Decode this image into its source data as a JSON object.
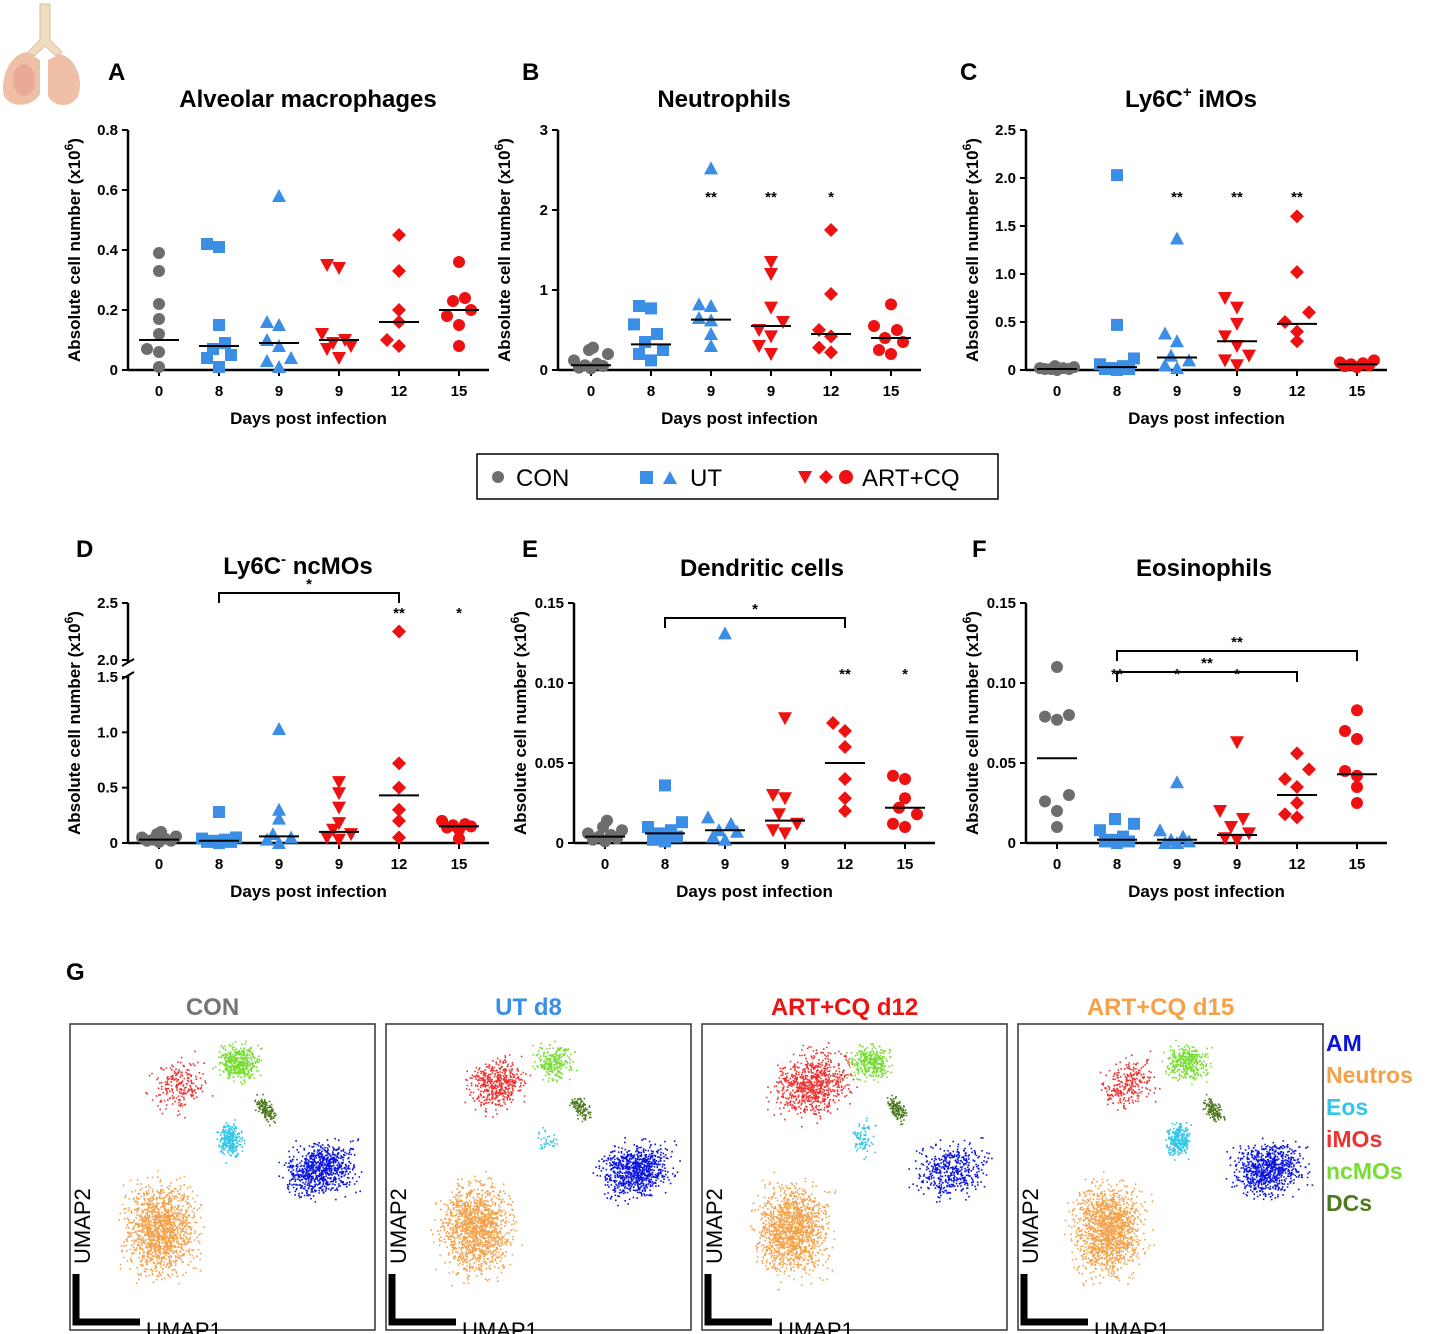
{
  "colors": {
    "CON": "#6d6d6d",
    "UT": "#3a8ee6",
    "ART": "#ee1111",
    "AM": "#0a14e0",
    "Neutros": "#f4a24a",
    "Eos": "#33c6e6",
    "iMOs": "#ee3333",
    "ncMOs": "#77dd33",
    "DCs": "#4e7a1f"
  },
  "legend": {
    "con": "CON",
    "ut": "UT",
    "art": "ART+CQ"
  },
  "umap": {
    "panel_label": "G",
    "titles": [
      "CON",
      "UT d8",
      "ART+CQ d12",
      "ART+CQ d15"
    ],
    "title_colors": [
      "#757575",
      "#3a8ee6",
      "#ee1111",
      "#f4a24a"
    ],
    "xlabel": "UMAP1",
    "ylabel": "UMAP2",
    "cell_types": [
      "AM",
      "Neutros",
      "Eos",
      "iMOs",
      "ncMOs",
      "DCs"
    ],
    "cluster_density": {
      "iMOs": [
        0.45,
        0.95,
        1.6,
        0.55
      ],
      "ncMOs": [
        1,
        0.55,
        0.75,
        0.8
      ],
      "Eos": [
        1,
        0.12,
        0.3,
        1
      ],
      "DCs": [
        1,
        0.8,
        1,
        1
      ],
      "AM": [
        1,
        1,
        0.55,
        1
      ],
      "Neutros": [
        1,
        1,
        1,
        1
      ]
    }
  },
  "chart_data": [
    {
      "panel": "A",
      "type": "scatter",
      "title": "Alveolar macrophages",
      "title_sup": "",
      "title_rest": "",
      "ylabel": "Absolute cell number (x10",
      "ylabel_sup": "6",
      "xlabel": "Days post infection",
      "x_categories": [
        "0",
        "8",
        "9",
        "9",
        "12",
        "15"
      ],
      "groups": [
        "CON",
        "UT",
        "UT",
        "ART",
        "ART",
        "ART"
      ],
      "markers": [
        "circle",
        "square",
        "triangle",
        "invtriangle",
        "diamond",
        "circle"
      ],
      "ylim": [
        0,
        0.8
      ],
      "yticks": [
        0,
        0.2,
        0.4,
        0.6,
        0.8
      ],
      "ytick_labels": [
        "0",
        "0.2",
        "0.4",
        "0.6",
        "0.8"
      ],
      "values": [
        [
          0.39,
          0.33,
          0.22,
          0.17,
          0.12,
          0.07,
          0.06,
          0.01
        ],
        [
          0.42,
          0.41,
          0.15,
          0.09,
          0.07,
          0.05,
          0.04,
          0.01
        ],
        [
          0.58,
          0.16,
          0.15,
          0.1,
          0.08,
          0.04,
          0.03,
          0.01
        ],
        [
          0.35,
          0.34,
          0.12,
          0.1,
          0.09,
          0.08,
          0.07,
          0.04
        ],
        [
          0.45,
          0.33,
          0.2,
          0.16,
          0.1,
          0.08
        ],
        [
          0.36,
          0.24,
          0.23,
          0.2,
          0.18,
          0.15,
          0.08
        ]
      ],
      "medians": [
        0.1,
        0.08,
        0.09,
        0.1,
        0.16,
        0.2
      ],
      "stars": [
        "",
        "",
        "",
        "",
        "",
        ""
      ],
      "brackets": []
    },
    {
      "panel": "B",
      "type": "scatter",
      "title": "Neutrophils",
      "title_sup": "",
      "title_rest": "",
      "ylabel": "Absolute cell number (x10",
      "ylabel_sup": "6",
      "xlabel": "Days post infection",
      "x_categories": [
        "0",
        "8",
        "9",
        "9",
        "12",
        "15"
      ],
      "groups": [
        "CON",
        "UT",
        "UT",
        "ART",
        "ART",
        "ART"
      ],
      "markers": [
        "circle",
        "square",
        "triangle",
        "invtriangle",
        "diamond",
        "circle"
      ],
      "ylim": [
        0,
        3
      ],
      "yticks": [
        0,
        1,
        2,
        3
      ],
      "ytick_labels": [
        "0",
        "1",
        "2",
        "3"
      ],
      "values": [
        [
          0.28,
          0.25,
          0.2,
          0.12,
          0.08,
          0.06,
          0.05,
          0.03,
          0.02
        ],
        [
          0.8,
          0.77,
          0.57,
          0.45,
          0.35,
          0.25,
          0.2,
          0.12
        ],
        [
          2.52,
          0.82,
          0.8,
          0.65,
          0.62,
          0.45,
          0.3
        ],
        [
          1.35,
          1.2,
          0.78,
          0.6,
          0.5,
          0.42,
          0.3,
          0.2
        ],
        [
          1.75,
          0.95,
          0.5,
          0.42,
          0.28,
          0.22
        ],
        [
          0.82,
          0.55,
          0.5,
          0.4,
          0.35,
          0.25,
          0.2
        ]
      ],
      "medians": [
        0.06,
        0.32,
        0.63,
        0.55,
        0.45,
        0.4
      ],
      "stars": [
        "",
        "",
        "**",
        "**",
        "*",
        ""
      ],
      "brackets": []
    },
    {
      "panel": "C",
      "type": "scatter",
      "title": "Ly6C",
      "title_sup": "+",
      "title_rest": " iMOs",
      "ylabel": "Absolute cell number (x10",
      "ylabel_sup": "6",
      "xlabel": "Days post infection",
      "x_categories": [
        "0",
        "8",
        "9",
        "9",
        "12",
        "15"
      ],
      "groups": [
        "CON",
        "UT",
        "UT",
        "ART",
        "ART",
        "ART"
      ],
      "markers": [
        "circle",
        "square",
        "triangle",
        "invtriangle",
        "diamond",
        "circle"
      ],
      "ylim": [
        0,
        2.5
      ],
      "yticks": [
        0,
        0.5,
        1.0,
        1.5,
        2.0,
        2.5
      ],
      "ytick_labels": [
        "0",
        "0.5",
        "1.0",
        "1.5",
        "2.0",
        "2.5"
      ],
      "values": [
        [
          0.04,
          0.03,
          0.02,
          0.02,
          0.01,
          0.01,
          0.01,
          0.0
        ],
        [
          2.03,
          0.47,
          0.12,
          0.06,
          0.04,
          0.02,
          0.01,
          0.01,
          0.0
        ],
        [
          1.37,
          0.38,
          0.3,
          0.15,
          0.1,
          0.05,
          0.02
        ],
        [
          0.75,
          0.65,
          0.48,
          0.35,
          0.25,
          0.15,
          0.1,
          0.05
        ],
        [
          1.6,
          1.02,
          0.6,
          0.5,
          0.4,
          0.3
        ],
        [
          0.1,
          0.08,
          0.07,
          0.06,
          0.05,
          0.04,
          0.03
        ]
      ],
      "medians": [
        0.01,
        0.03,
        0.13,
        0.3,
        0.48,
        0.06
      ],
      "stars": [
        "",
        "",
        "**",
        "**",
        "**",
        ""
      ],
      "brackets": []
    },
    {
      "panel": "D",
      "type": "scatter",
      "title": "Ly6C",
      "title_sup": "-",
      "title_rest": " ncMOs",
      "ylabel": "Absolute cell number (x10",
      "ylabel_sup": "6",
      "xlabel": "Days post infection",
      "x_categories": [
        "0",
        "8",
        "9",
        "9",
        "12",
        "15"
      ],
      "groups": [
        "CON",
        "UT",
        "UT",
        "ART",
        "ART",
        "ART"
      ],
      "markers": [
        "circle",
        "square",
        "triangle",
        "invtriangle",
        "diamond",
        "circle"
      ],
      "ylim": [
        0,
        2.5
      ],
      "yticks": [
        0,
        0.5,
        1.0,
        1.5,
        2.0,
        2.5
      ],
      "ytick_labels": [
        "0",
        "0.5",
        "1.0",
        "1.5",
        "2.0",
        "2.5"
      ],
      "broken_axis": {
        "lower": [
          0,
          1.5
        ],
        "upper": [
          2.0,
          2.5
        ]
      },
      "values": [
        [
          0.1,
          0.08,
          0.06,
          0.05,
          0.04,
          0.03,
          0.02,
          0.02,
          0.01
        ],
        [
          0.28,
          0.05,
          0.04,
          0.03,
          0.02,
          0.01,
          0.01,
          0.0
        ],
        [
          1.03,
          0.3,
          0.22,
          0.08,
          0.05,
          0.03,
          0.0
        ],
        [
          0.55,
          0.45,
          0.32,
          0.18,
          0.12,
          0.08,
          0.05,
          0.03
        ],
        [
          2.25,
          0.72,
          0.5,
          0.3,
          0.2,
          0.05
        ],
        [
          0.2,
          0.17,
          0.16,
          0.15,
          0.14,
          0.12,
          0.04
        ]
      ],
      "medians": [
        0.03,
        0.02,
        0.06,
        0.1,
        0.43,
        0.15
      ],
      "stars": [
        "",
        "",
        "",
        "",
        "**",
        "*"
      ],
      "brackets": [
        {
          "from": 1,
          "to": 4,
          "label": "*"
        }
      ]
    },
    {
      "panel": "E",
      "type": "scatter",
      "title": "Dendritic cells",
      "title_sup": "",
      "title_rest": "",
      "ylabel": "Absolute cell number (x10",
      "ylabel_sup": "6",
      "xlabel": "Days post infection",
      "x_categories": [
        "0",
        "8",
        "9",
        "9",
        "12",
        "15"
      ],
      "groups": [
        "CON",
        "UT",
        "UT",
        "ART",
        "ART",
        "ART"
      ],
      "markers": [
        "circle",
        "square",
        "triangle",
        "invtriangle",
        "diamond",
        "circle"
      ],
      "ylim": [
        0,
        0.15
      ],
      "yticks": [
        0,
        0.05,
        0.1,
        0.15
      ],
      "ytick_labels": [
        "0",
        "0.05",
        "0.10",
        "0.15"
      ],
      "values": [
        [
          0.014,
          0.01,
          0.008,
          0.006,
          0.005,
          0.004,
          0.003,
          0.002,
          0.001
        ],
        [
          0.036,
          0.013,
          0.01,
          0.008,
          0.006,
          0.004,
          0.002,
          0.001
        ],
        [
          0.131,
          0.016,
          0.012,
          0.008,
          0.007,
          0.004,
          0.002
        ],
        [
          0.078,
          0.03,
          0.028,
          0.018,
          0.012,
          0.008,
          0.006
        ],
        [
          0.075,
          0.07,
          0.06,
          0.04,
          0.028,
          0.02
        ],
        [
          0.042,
          0.04,
          0.028,
          0.022,
          0.018,
          0.012,
          0.01
        ]
      ],
      "medians": [
        0.004,
        0.006,
        0.008,
        0.014,
        0.05,
        0.022
      ],
      "stars": [
        "",
        "",
        "",
        "",
        "**",
        "*"
      ],
      "brackets": [
        {
          "from": 1,
          "to": 4,
          "label": "*"
        }
      ]
    },
    {
      "panel": "F",
      "type": "scatter",
      "title": "Eosinophils",
      "title_sup": "",
      "title_rest": "",
      "ylabel": "Absolute cell number (x10",
      "ylabel_sup": "6",
      "xlabel": "Days post infection",
      "x_categories": [
        "0",
        "8",
        "9",
        "9",
        "12",
        "15"
      ],
      "groups": [
        "CON",
        "UT",
        "UT",
        "ART",
        "ART",
        "ART"
      ],
      "markers": [
        "circle",
        "square",
        "triangle",
        "invtriangle",
        "diamond",
        "circle"
      ],
      "ylim": [
        0,
        0.15
      ],
      "yticks": [
        0,
        0.05,
        0.1,
        0.15
      ],
      "ytick_labels": [
        "0",
        "0.05",
        "0.10",
        "0.15"
      ],
      "values": [
        [
          0.11,
          0.08,
          0.079,
          0.077,
          0.03,
          0.026,
          0.02,
          0.01
        ],
        [
          0.015,
          0.012,
          0.008,
          0.004,
          0.002,
          0.001,
          0.001,
          0.0
        ],
        [
          0.038,
          0.008,
          0.004,
          0.002,
          0.001,
          0.0,
          0.0
        ],
        [
          0.063,
          0.02,
          0.015,
          0.01,
          0.006,
          0.003,
          0.002
        ],
        [
          0.056,
          0.046,
          0.04,
          0.035,
          0.025,
          0.018,
          0.016
        ],
        [
          0.083,
          0.07,
          0.065,
          0.045,
          0.042,
          0.035,
          0.025
        ]
      ],
      "medians": [
        0.053,
        0.002,
        0.002,
        0.005,
        0.03,
        0.043
      ],
      "stars": [
        "",
        "**",
        "*",
        "*",
        "",
        ""
      ],
      "brackets": [
        {
          "from": 1,
          "to": 4,
          "label": "**"
        },
        {
          "from": 1,
          "to": 5,
          "label": "**"
        }
      ]
    }
  ]
}
